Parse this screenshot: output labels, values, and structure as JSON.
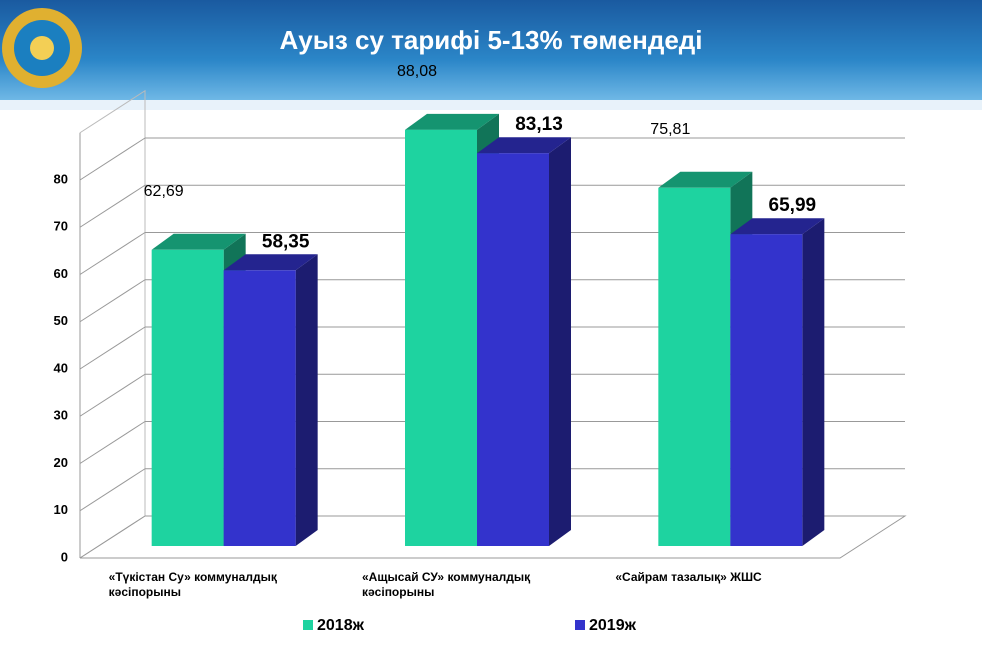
{
  "chart_data": {
    "type": "bar3d",
    "title": "Ауыз су тарифі 5-13% төмендеді",
    "categories": [
      "«Түкістан Су» коммуналдық кәсіпорыны",
      "«Ащысай СУ» коммуналдық кәсіпорыны",
      "«Сайрам тазалық» ЖШС"
    ],
    "series": [
      {
        "name": "2018ж",
        "color": "#1ed3a0",
        "values": [
          62.69,
          88.08,
          75.81
        ],
        "value_labels": [
          "62,69",
          "88,08",
          "75,81"
        ]
      },
      {
        "name": "2019ж",
        "color": "#3333cc",
        "values": [
          58.35,
          83.13,
          65.99
        ],
        "value_labels": [
          "58,35",
          "83,13",
          "65,99"
        ]
      }
    ],
    "ylim": [
      0,
      90
    ],
    "yticks": [
      0,
      10,
      20,
      30,
      40,
      50,
      60,
      70,
      80
    ],
    "grid": true
  }
}
